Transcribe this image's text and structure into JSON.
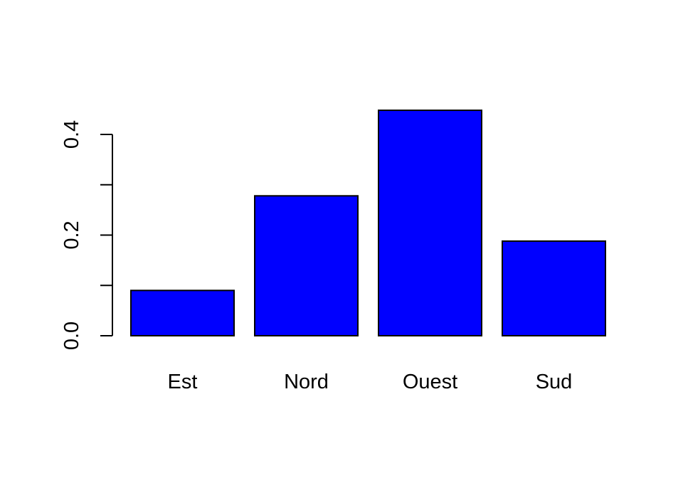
{
  "chart_data": {
    "type": "bar",
    "title": "",
    "xlabel": "",
    "ylabel": "",
    "categories": [
      "Est",
      "Nord",
      "Ouest",
      "Sud"
    ],
    "values": [
      0.09,
      0.278,
      0.448,
      0.188
    ],
    "ylim": [
      0,
      0.4
    ],
    "yticks": [
      0.0,
      0.1,
      0.2,
      0.3,
      0.4
    ],
    "ytick_labels": [
      "0.0",
      "",
      "0.2",
      "",
      "0.4"
    ],
    "bar_color": "#0000ff",
    "bar_edge_color": "#000000",
    "grid": false,
    "legend": "none"
  }
}
